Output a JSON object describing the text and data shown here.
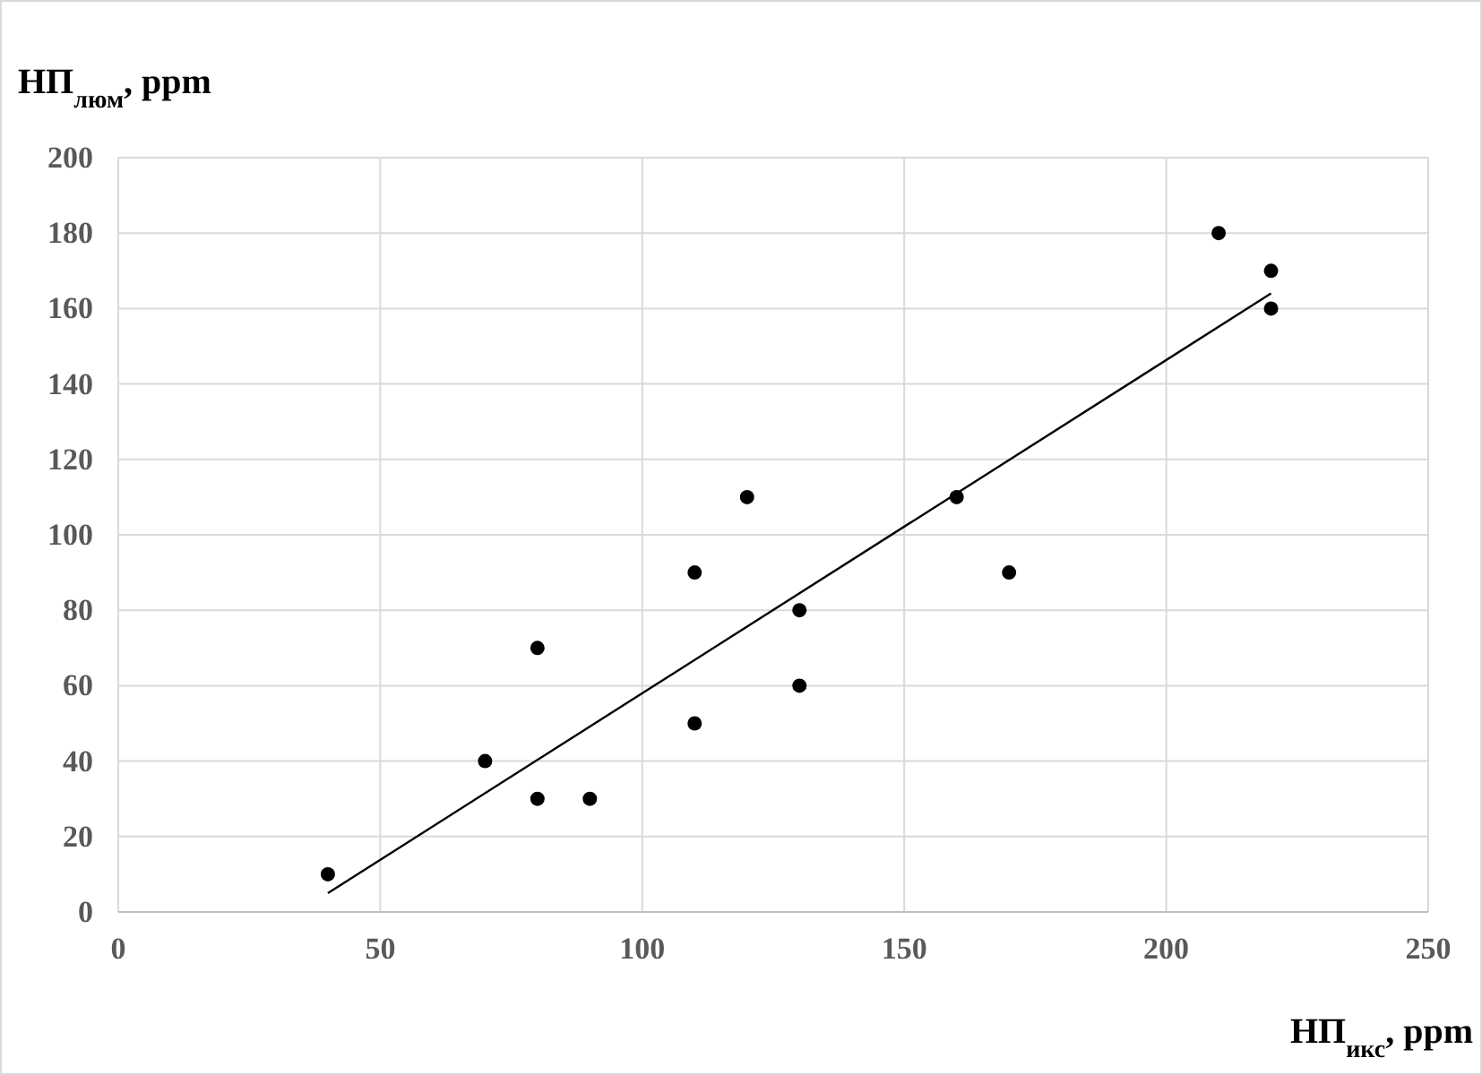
{
  "chart_data": {
    "type": "scatter",
    "xlabel": "НП$_{икс}$, ppm",
    "ylabel": "НП$_{люм}$, ppm",
    "xlim": [
      0,
      250
    ],
    "xticks": [
      0,
      50,
      100,
      150,
      200,
      250
    ],
    "ylim": [
      0,
      200
    ],
    "yticks": [
      0,
      20,
      40,
      60,
      80,
      100,
      120,
      140,
      160,
      180,
      200
    ],
    "grid": true,
    "series": [
      {
        "marker": "circle",
        "color": "#000000",
        "x": [
          40,
          70,
          80,
          80,
          90,
          110,
          110,
          120,
          130,
          130,
          160,
          170,
          210,
          220,
          220
        ],
        "values": [
          10,
          40,
          70,
          30,
          30,
          90,
          50,
          110,
          80,
          60,
          110,
          90,
          180,
          170,
          160
        ]
      },
      {
        "type": "line",
        "marker": "none",
        "color": "#000000",
        "x": [
          40,
          220
        ],
        "values": [
          5,
          164
        ]
      }
    ]
  }
}
